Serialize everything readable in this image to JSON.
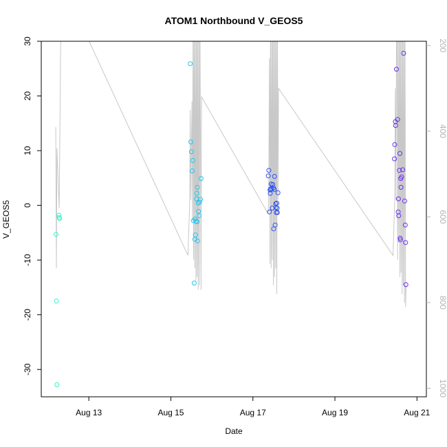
{
  "chart_data": {
    "type": "scatter",
    "title": "ATOM1 Northbound V_GEOS5",
    "xlabel": "Date",
    "ylabel": "V_GEOS5",
    "xlim": [
      "2016-08-11T20:10",
      "2016-08-21T05:30"
    ],
    "ylim": [
      -35,
      30
    ],
    "x_ticks": [
      {
        "date": "2016-08-13T00:00",
        "label": "Aug 13"
      },
      {
        "date": "2016-08-15T00:00",
        "label": "Aug 15"
      },
      {
        "date": "2016-08-17T00:00",
        "label": "Aug 17"
      },
      {
        "date": "2016-08-19T00:00",
        "label": "Aug 19"
      },
      {
        "date": "2016-08-21T00:00",
        "label": "Aug 21"
      }
    ],
    "y_ticks": [
      -30,
      -20,
      -10,
      0,
      10,
      20,
      30
    ],
    "right_axis": {
      "label": "",
      "reversed": true,
      "lim": [
        190,
        1020
      ],
      "ticks": [
        200,
        400,
        600,
        800,
        1000
      ]
    },
    "grid": false,
    "legend": "none",
    "series": [
      {
        "color": "#2EF5C8",
        "points": [
          [
            "2016-08-12T04:50",
            -5.3
          ],
          [
            "2016-08-12T05:00",
            -17.5
          ],
          [
            "2016-08-12T05:20",
            -32.8
          ],
          [
            "2016-08-12T06:30",
            -1.8
          ],
          [
            "2016-08-12T06:40",
            -2.2
          ],
          [
            "2016-08-12T06:55",
            -2.4
          ]
        ]
      },
      {
        "color": "#1EC8F0",
        "points": [
          [
            "2016-08-15T11:20",
            25.9
          ],
          [
            "2016-08-15T11:40",
            11.6
          ],
          [
            "2016-08-15T12:00",
            9.8
          ],
          [
            "2016-08-15T12:30",
            6.3
          ],
          [
            "2016-08-15T12:50",
            8.2
          ],
          [
            "2016-08-15T13:10",
            -2.8
          ],
          [
            "2016-08-15T13:40",
            -14.2
          ],
          [
            "2016-08-15T14:00",
            -6.2
          ],
          [
            "2016-08-15T14:10",
            -2.5
          ],
          [
            "2016-08-15T14:20",
            -5.4
          ],
          [
            "2016-08-15T14:40",
            -2.9
          ],
          [
            "2016-08-15T15:00",
            1.2
          ],
          [
            "2016-08-15T15:10",
            2.2
          ],
          [
            "2016-08-15T15:20",
            -3.0
          ],
          [
            "2016-08-15T15:30",
            3.3
          ],
          [
            "2016-08-15T15:40",
            -6.5
          ],
          [
            "2016-08-15T16:00",
            0.4
          ],
          [
            "2016-08-15T16:10",
            -1.1
          ],
          [
            "2016-08-15T16:30",
            -1.9
          ],
          [
            "2016-08-15T16:50",
            0.6
          ],
          [
            "2016-08-15T17:20",
            1.1
          ],
          [
            "2016-08-15T17:40",
            4.9
          ]
        ]
      },
      {
        "color": "#2A4FF0",
        "points": [
          [
            "2016-08-17T09:00",
            5.4
          ],
          [
            "2016-08-17T09:20",
            6.4
          ],
          [
            "2016-08-17T09:40",
            -1.2
          ],
          [
            "2016-08-17T10:00",
            2.8
          ],
          [
            "2016-08-17T10:10",
            2.2
          ],
          [
            "2016-08-17T10:20",
            3.0
          ],
          [
            "2016-08-17T10:40",
            3.9
          ],
          [
            "2016-08-17T11:00",
            3.0
          ],
          [
            "2016-08-17T11:20",
            -0.5
          ],
          [
            "2016-08-17T11:40",
            3.8
          ],
          [
            "2016-08-17T12:00",
            3.2
          ],
          [
            "2016-08-17T12:10",
            -4.3
          ],
          [
            "2016-08-17T12:30",
            2.9
          ],
          [
            "2016-08-17T12:40",
            5.3
          ],
          [
            "2016-08-17T13:00",
            -3.6
          ],
          [
            "2016-08-17T13:20",
            0.3
          ],
          [
            "2016-08-17T13:30",
            -0.4
          ],
          [
            "2016-08-17T13:40",
            -1.3
          ],
          [
            "2016-08-17T14:00",
            0.4
          ],
          [
            "2016-08-17T14:10",
            -0.5
          ],
          [
            "2016-08-17T14:20",
            -1.3
          ],
          [
            "2016-08-17T14:40",
            2.3
          ]
        ]
      },
      {
        "color": "#6B2EEF",
        "points": [
          [
            "2016-08-20T10:50",
            8.5
          ],
          [
            "2016-08-20T11:00",
            11.1
          ],
          [
            "2016-08-20T11:20",
            15.3
          ],
          [
            "2016-08-20T11:30",
            14.6
          ],
          [
            "2016-08-20T12:00",
            24.9
          ],
          [
            "2016-08-20T12:40",
            15.7
          ],
          [
            "2016-08-20T13:00",
            -1.2
          ],
          [
            "2016-08-20T13:10",
            1.2
          ],
          [
            "2016-08-20T13:20",
            -1.9
          ],
          [
            "2016-08-20T13:40",
            6.4
          ],
          [
            "2016-08-20T14:00",
            9.5
          ],
          [
            "2016-08-20T14:10",
            -6.0
          ],
          [
            "2016-08-20T14:20",
            -6.3
          ],
          [
            "2016-08-20T14:30",
            4.9
          ],
          [
            "2016-08-20T14:40",
            3.3
          ],
          [
            "2016-08-20T15:00",
            5.2
          ],
          [
            "2016-08-20T15:40",
            6.5
          ],
          [
            "2016-08-20T16:10",
            27.8
          ],
          [
            "2016-08-20T16:50",
            0.8
          ],
          [
            "2016-08-20T17:10",
            -3.6
          ],
          [
            "2016-08-20T17:20",
            -6.8
          ],
          [
            "2016-08-20T17:30",
            -14.5
          ]
        ]
      }
    ],
    "pressure_trace": {
      "color": "#c8c8c8",
      "points": [
        [
          "2016-08-12T04:40",
          390
        ],
        [
          "2016-08-12T05:00",
          720
        ],
        [
          "2016-08-12T05:20",
          440
        ],
        [
          "2016-08-12T06:40",
          580
        ],
        [
          "2016-08-12T07:30",
          200
        ],
        [
          "2016-08-12T08:00",
          120
        ],
        [
          "2016-08-12T09:00",
          120
        ],
        [
          "2016-08-13T00:10",
          190
        ],
        [
          "2016-08-15T10:00",
          690
        ],
        [
          "2016-08-15T11:00",
          570
        ],
        [
          "2016-08-15T11:20",
          350
        ],
        [
          "2016-08-15T11:40",
          560
        ],
        [
          "2016-08-15T12:20",
          330
        ],
        [
          "2016-08-15T12:40",
          610
        ],
        [
          "2016-08-15T13:00",
          130
        ],
        [
          "2016-08-15T13:20",
          700
        ],
        [
          "2016-08-15T13:40",
          130
        ],
        [
          "2016-08-15T14:00",
          720
        ],
        [
          "2016-08-15T14:20",
          130
        ],
        [
          "2016-08-15T14:40",
          750
        ],
        [
          "2016-08-15T15:00",
          120
        ],
        [
          "2016-08-15T15:20",
          740
        ],
        [
          "2016-08-15T15:40",
          120
        ],
        [
          "2016-08-15T16:00",
          770
        ],
        [
          "2016-08-15T16:20",
          120
        ],
        [
          "2016-08-15T16:40",
          760
        ],
        [
          "2016-08-15T17:00",
          120
        ],
        [
          "2016-08-15T17:40",
          770
        ],
        [
          "2016-08-15T17:50",
          400
        ],
        [
          "2016-08-15T18:00",
          320
        ],
        [
          "2016-08-17T08:30",
          590
        ],
        [
          "2016-08-17T09:00",
          590
        ],
        [
          "2016-08-17T09:20",
          510
        ],
        [
          "2016-08-17T09:40",
          230
        ],
        [
          "2016-08-17T10:00",
          710
        ],
        [
          "2016-08-17T10:20",
          120
        ],
        [
          "2016-08-17T10:40",
          720
        ],
        [
          "2016-08-17T11:00",
          120
        ],
        [
          "2016-08-17T11:20",
          700
        ],
        [
          "2016-08-17T11:40",
          120
        ],
        [
          "2016-08-17T12:00",
          760
        ],
        [
          "2016-08-17T12:20",
          120
        ],
        [
          "2016-08-17T12:40",
          740
        ],
        [
          "2016-08-17T13:00",
          120
        ],
        [
          "2016-08-17T13:20",
          720
        ],
        [
          "2016-08-17T13:40",
          120
        ],
        [
          "2016-08-17T14:00",
          780
        ],
        [
          "2016-08-17T14:20",
          120
        ],
        [
          "2016-08-17T14:40",
          560
        ],
        [
          "2016-08-17T15:00",
          300
        ],
        [
          "2016-08-20T10:00",
          690
        ],
        [
          "2016-08-20T11:00",
          560
        ],
        [
          "2016-08-20T11:20",
          300
        ],
        [
          "2016-08-20T11:40",
          560
        ],
        [
          "2016-08-20T12:00",
          200
        ],
        [
          "2016-08-20T12:20",
          120
        ],
        [
          "2016-08-20T12:40",
          700
        ],
        [
          "2016-08-20T13:00",
          130
        ],
        [
          "2016-08-20T13:20",
          660
        ],
        [
          "2016-08-20T13:40",
          120
        ],
        [
          "2016-08-20T14:00",
          740
        ],
        [
          "2016-08-20T14:20",
          130
        ],
        [
          "2016-08-20T14:40",
          730
        ],
        [
          "2016-08-20T15:00",
          120
        ],
        [
          "2016-08-20T15:20",
          780
        ],
        [
          "2016-08-20T15:40",
          120
        ],
        [
          "2016-08-20T16:00",
          760
        ],
        [
          "2016-08-20T16:20",
          120
        ],
        [
          "2016-08-20T16:40",
          800
        ],
        [
          "2016-08-20T17:00",
          120
        ],
        [
          "2016-08-20T17:20",
          810
        ],
        [
          "2016-08-20T17:40",
          760
        ]
      ]
    }
  }
}
